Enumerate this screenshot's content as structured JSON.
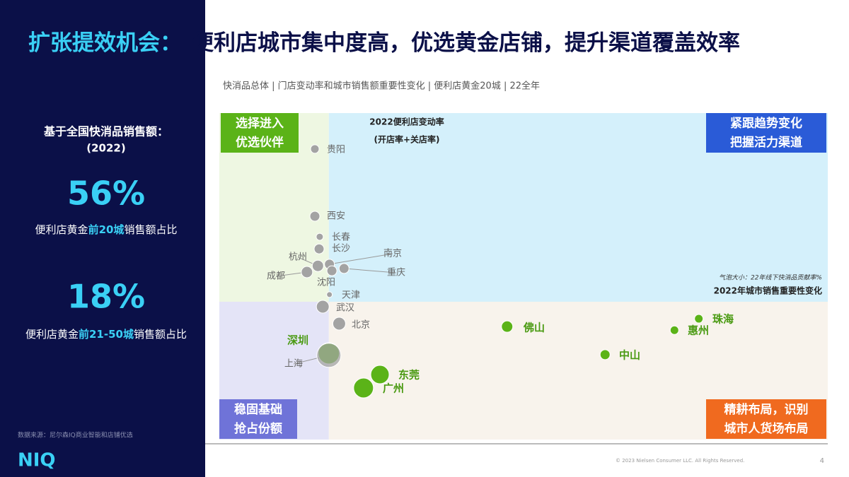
{
  "title": {
    "highlight": "扩张提效机会：",
    "rest": "便利店城市集中度高，优选黄金店铺，提升渠道覆盖效率"
  },
  "sidebar": {
    "heading": "基于全国快消品销售额：",
    "year": "(2022)",
    "stats": [
      {
        "value": "56%",
        "label_pre": "便利店黄金",
        "label_em": "前20城",
        "label_post": "销售额占比"
      },
      {
        "value": "18%",
        "label_pre": "便利店黄金",
        "label_em": "前21-50城",
        "label_post": "销售额占比"
      }
    ],
    "source": "数据来源：尼尔森IQ商业智能和店铺优选",
    "logo": "NIQ"
  },
  "chart_data": {
    "type": "bubble",
    "subtitle": "快消品总体 | 门店变动率和城市销售额重要性变化 | 便利店黄金20城 | 22全年",
    "y_label": "2022便利店变动率",
    "y_label_note": "(开店率+关店率)",
    "x_label": "2022年城市销售重要性变化",
    "size_note": "气泡大小：22年线下快消品贡献率%",
    "xlim": [
      0,
      100
    ],
    "ylim": [
      0,
      100
    ],
    "x_split": 18,
    "y_split": 42.2,
    "quadrants": [
      {
        "lines": [
          "选择进入",
          "优选伙伴"
        ],
        "color": "#5bb318",
        "bg": "#eef7e2"
      },
      {
        "lines": [
          "紧跟趋势变化",
          "把握活力渠道"
        ],
        "color": "#2a5bd7",
        "bg": "#d4f0fb"
      },
      {
        "lines": [
          "稳固基础",
          "抢占份额"
        ],
        "color": "#6f73d8",
        "bg": "#e4e4f7"
      },
      {
        "lines": [
          "精耕布局，识别",
          "城市人货场布局"
        ],
        "color": "#f06a1f",
        "bg": "#f8f3ec"
      }
    ],
    "points": {
      "labels": [
        "贵阳",
        "西安",
        "长春",
        "长沙",
        "杭州",
        "南京",
        "重庆",
        "成都",
        "沈阳",
        "天津",
        "武汉",
        "北京",
        "深圳",
        "上海",
        "东莞",
        "广州",
        "佛山",
        "中山",
        "惠州",
        "珠海"
      ],
      "x": [
        15.7,
        15.7,
        16.5,
        16.4,
        16.2,
        18.1,
        20.5,
        14.4,
        18.5,
        18.1,
        17.0,
        19.7,
        18.0,
        18.0,
        26.4,
        23.7,
        47.3,
        63.4,
        74.8,
        78.8
      ],
      "values": [
        89.0,
        68.4,
        62.1,
        58.4,
        53.2,
        53.7,
        52.4,
        51.3,
        51.7,
        44.4,
        40.7,
        35.5,
        26.4,
        25.8,
        19.9,
        15.8,
        34.6,
        26.0,
        33.5,
        37.0
      ],
      "sizes": [
        6,
        7,
        5,
        7,
        8,
        7,
        7,
        8,
        7,
        4,
        9,
        9,
        15,
        17,
        13,
        14,
        8,
        7,
        6,
        6
      ],
      "colors": [
        "#a3a3a3",
        "#a3a3a3",
        "#a3a3a3",
        "#a3a3a3",
        "#a3a3a3",
        "#a3a3a3",
        "#a3a3a3",
        "#a3a3a3",
        "#a3a3a3",
        "#a3a3a3",
        "#a3a3a3",
        "#a3a3a3",
        "#5bb318",
        "#a3a3a3",
        "#5bb318",
        "#5bb318",
        "#5bb318",
        "#5bb318",
        "#5bb318",
        "#5bb318"
      ]
    }
  },
  "footer": {
    "copyright": "© 2023 Nielsen Consumer LLC. All Rights Reserved.",
    "page": "4"
  }
}
